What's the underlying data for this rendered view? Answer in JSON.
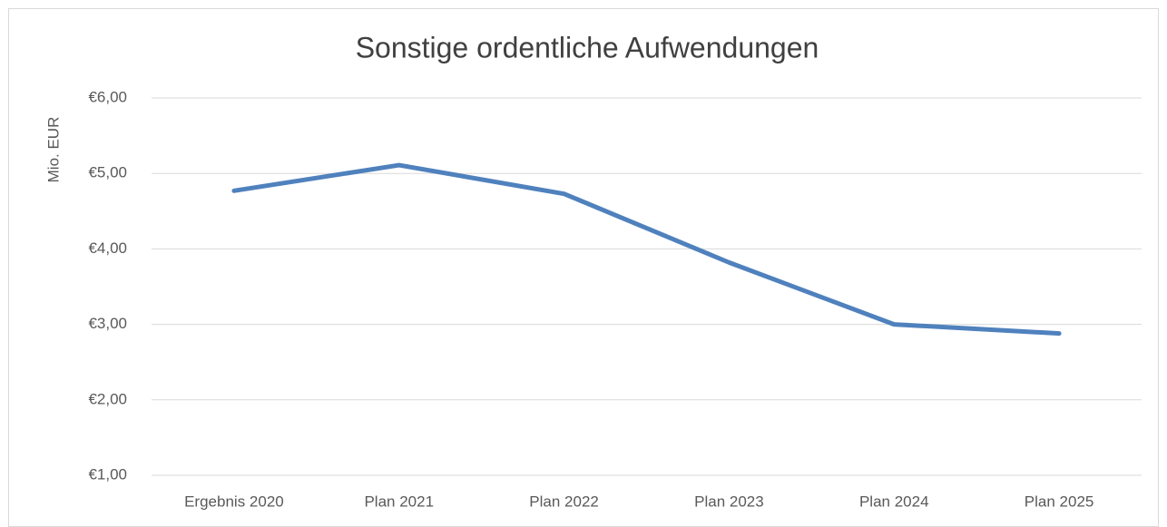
{
  "chart_data": {
    "type": "line",
    "title": "Sonstige ordentliche Aufwendungen",
    "y_label": "Mio. EUR",
    "categories": [
      "Ergebnis 2020",
      "Plan 2021",
      "Plan 2022",
      "Plan 2023",
      "Plan 2024",
      "Plan 2025"
    ],
    "series": [
      {
        "name": "Sonstige ordentliche Aufwendungen",
        "color": "#4f81bd",
        "values": [
          4.77,
          5.11,
          4.73,
          3.82,
          3.0,
          2.88
        ]
      }
    ],
    "ylim": [
      1,
      6
    ],
    "yticks": [
      {
        "value": 1,
        "label": "€1,00"
      },
      {
        "value": 2,
        "label": "€2,00"
      },
      {
        "value": 3,
        "label": "€3,00"
      },
      {
        "value": 4,
        "label": "€4,00"
      },
      {
        "value": 5,
        "label": "€5,00"
      },
      {
        "value": 6,
        "label": "€6,00"
      }
    ],
    "grid": true
  }
}
